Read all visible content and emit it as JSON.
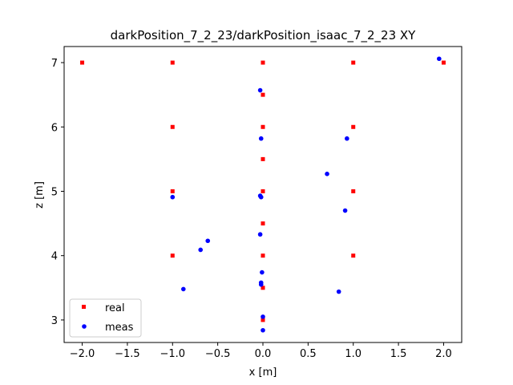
{
  "chart_data": {
    "type": "scatter",
    "title": "darkPosition_7_2_23/darkPosition_isaac_7_2_23 XY",
    "xlabel": "x [m]",
    "ylabel": "z [m]",
    "xlim": [
      -2.2,
      2.2
    ],
    "ylim": [
      2.65,
      7.25
    ],
    "grid": false,
    "legend_position": "lower-left",
    "x_ticks": [
      {
        "value": -2.0,
        "label": "−2.0"
      },
      {
        "value": -1.5,
        "label": "−1.5"
      },
      {
        "value": -1.0,
        "label": "−1.0"
      },
      {
        "value": -0.5,
        "label": "−0.5"
      },
      {
        "value": 0.0,
        "label": "0.0"
      },
      {
        "value": 0.5,
        "label": "0.5"
      },
      {
        "value": 1.0,
        "label": "1.0"
      },
      {
        "value": 1.5,
        "label": "1.5"
      },
      {
        "value": 2.0,
        "label": "2.0"
      }
    ],
    "y_ticks": [
      {
        "value": 3,
        "label": "3"
      },
      {
        "value": 4,
        "label": "4"
      },
      {
        "value": 5,
        "label": "5"
      },
      {
        "value": 6,
        "label": "6"
      },
      {
        "value": 7,
        "label": "7"
      }
    ],
    "series": [
      {
        "name": "real",
        "color": "#ff0000",
        "marker": "square",
        "points": [
          [
            -2,
            7
          ],
          [
            -1,
            7
          ],
          [
            0,
            7
          ],
          [
            1,
            7
          ],
          [
            2,
            7
          ],
          [
            0,
            6.5
          ],
          [
            -1,
            6
          ],
          [
            0,
            6
          ],
          [
            1,
            6
          ],
          [
            0,
            5.5
          ],
          [
            -1,
            5
          ],
          [
            0,
            5
          ],
          [
            1,
            5
          ],
          [
            0,
            4.5
          ],
          [
            -1,
            4
          ],
          [
            0,
            4
          ],
          [
            1,
            4
          ],
          [
            0,
            3.5
          ],
          [
            0,
            3
          ]
        ]
      },
      {
        "name": "meas",
        "color": "#0000ff",
        "marker": "circle",
        "points": [
          [
            1.95,
            7.06
          ],
          [
            -0.03,
            6.57
          ],
          [
            -0.02,
            5.82
          ],
          [
            0.93,
            5.82
          ],
          [
            0.71,
            5.27
          ],
          [
            -1.0,
            4.91
          ],
          [
            -0.03,
            4.93
          ],
          [
            -0.02,
            4.91
          ],
          [
            0.91,
            4.7
          ],
          [
            -0.03,
            4.33
          ],
          [
            -0.61,
            4.23
          ],
          [
            -0.69,
            4.09
          ],
          [
            -0.01,
            3.74
          ],
          [
            -0.02,
            3.58
          ],
          [
            -0.02,
            3.55
          ],
          [
            -0.88,
            3.48
          ],
          [
            0.84,
            3.44
          ],
          [
            0.0,
            3.05
          ],
          [
            0.0,
            2.84
          ]
        ]
      }
    ]
  }
}
